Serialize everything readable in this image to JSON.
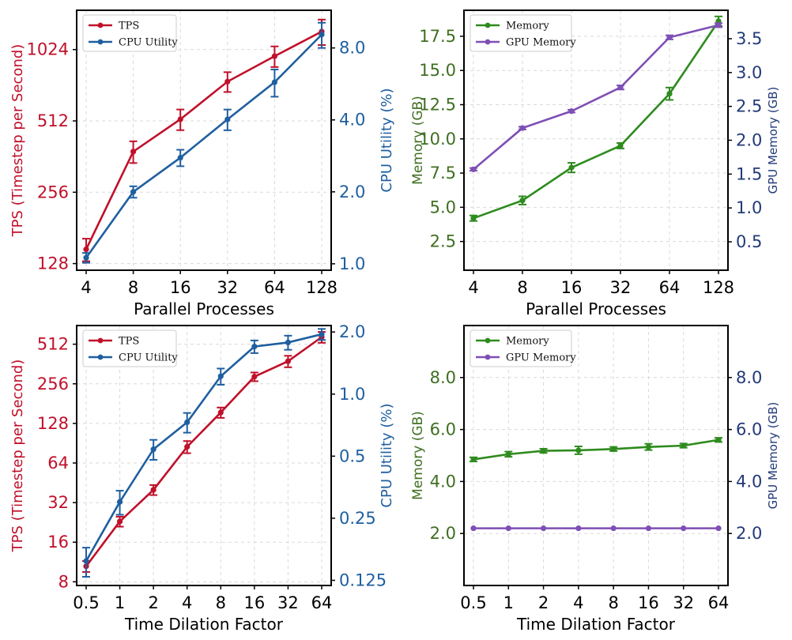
{
  "colors": {
    "tps": "#c0102a",
    "cpu": "#1f5fa0",
    "memory": "#2e8b1e",
    "gpu": "#7e4fb5",
    "memory_axis": "#3f6f22",
    "gpu_axis": "#233a78"
  },
  "chart_data": [
    {
      "id": "tl",
      "type": "line",
      "xlabel": "Parallel Processes",
      "categories": [
        "4",
        "8",
        "16",
        "32",
        "64",
        "128"
      ],
      "left_axis": {
        "label": "TPS (Timestep per Second)",
        "scale": "log2",
        "range": [
          120,
          1500
        ],
        "ticks": [
          128,
          256,
          512,
          1024
        ],
        "tick_labels": [
          "128",
          "256",
          "512",
          "1024"
        ],
        "color_key": "tps"
      },
      "right_axis": {
        "label": "CPU Utility (%)",
        "scale": "log2",
        "range": [
          0.94,
          11.5
        ],
        "ticks": [
          1,
          2,
          4,
          8
        ],
        "tick_labels": [
          "1.0",
          "2.0",
          "4.0",
          "8.0"
        ],
        "color_key": "cpu"
      },
      "legend_position": "top-left",
      "series": [
        {
          "name": "TPS",
          "axis": "left",
          "color_key": "tps",
          "values": [
            147,
            380,
            520,
            750,
            960,
            1220
          ],
          "errors": [
            16,
            40,
            52,
            72,
            96,
            150
          ]
        },
        {
          "name": "CPU Utility",
          "axis": "right",
          "color_key": "cpu",
          "values": [
            1.06,
            2.0,
            2.78,
            4.02,
            5.75,
            9.1
          ],
          "errors": [
            0.05,
            0.11,
            0.22,
            0.4,
            0.75,
            1.1
          ]
        }
      ]
    },
    {
      "id": "tr",
      "type": "line",
      "xlabel": "Parallel Processes",
      "categories": [
        "4",
        "8",
        "16",
        "32",
        "64",
        "128"
      ],
      "left_axis": {
        "label": "Memory (GB)",
        "scale": "linear",
        "range": [
          0.4,
          19.4
        ],
        "ticks": [
          2.5,
          5,
          7.5,
          10,
          12.5,
          15,
          17.5
        ],
        "tick_labels": [
          "2.5",
          "5.0",
          "7.5",
          "10.0",
          "12.5",
          "15.0",
          "17.5"
        ],
        "color_key": "memory_axis"
      },
      "right_axis": {
        "label": "GPU Memory (GB)",
        "scale": "linear",
        "range": [
          0.08,
          3.92
        ],
        "ticks": [
          0.5,
          1,
          1.5,
          2,
          2.5,
          3,
          3.5
        ],
        "tick_labels": [
          "0.5",
          "1.0",
          "1.5",
          "2.0",
          "2.5",
          "3.0",
          "3.5"
        ],
        "color_key": "gpu_axis"
      },
      "legend_position": "top-left",
      "series": [
        {
          "name": "Memory",
          "axis": "left",
          "color_key": "memory",
          "values": [
            4.2,
            5.5,
            7.9,
            9.5,
            13.3,
            18.6
          ],
          "errors": [
            0.2,
            0.3,
            0.35,
            0.2,
            0.45,
            0.35
          ]
        },
        {
          "name": "GPU Memory",
          "axis": "right",
          "color_key": "gpu",
          "values": [
            1.57,
            2.18,
            2.43,
            2.78,
            3.52,
            3.7
          ],
          "errors": [
            0.02,
            0.02,
            0.02,
            0.03,
            0.03,
            0.03
          ]
        }
      ]
    },
    {
      "id": "bl",
      "type": "line",
      "xlabel": "Time Dilation Factor",
      "categories": [
        "0.5",
        "1",
        "2",
        "4",
        "8",
        "16",
        "32",
        "64"
      ],
      "left_axis": {
        "label": "TPS (Timestep per Second)",
        "scale": "log2",
        "range": [
          7.5,
          710
        ],
        "ticks": [
          8,
          16,
          32,
          64,
          128,
          256,
          512
        ],
        "tick_labels": [
          "8",
          "16",
          "32",
          "64",
          "128",
          "256",
          "512"
        ],
        "color_key": "tps"
      },
      "right_axis": {
        "label": "CPU Utility (%)",
        "scale": "log2",
        "range": [
          0.118,
          2.15
        ],
        "ticks": [
          0.125,
          0.25,
          0.5,
          1,
          2
        ],
        "tick_labels": [
          "0.125",
          "0.25",
          "0.5",
          "1.0",
          "2.0"
        ],
        "color_key": "cpu"
      },
      "legend_position": "top-left",
      "series": [
        {
          "name": "TPS",
          "axis": "left",
          "color_key": "tps",
          "values": [
            10.5,
            23,
            40,
            85,
            155,
            290,
            380,
            580
          ],
          "errors": [
            1,
            2,
            3.5,
            9,
            14,
            22,
            38,
            55
          ]
        },
        {
          "name": "CPU Utility",
          "axis": "right",
          "color_key": "cpu",
          "values": [
            0.155,
            0.3,
            0.54,
            0.73,
            1.22,
            1.7,
            1.78,
            1.95
          ],
          "errors": [
            0.025,
            0.04,
            0.06,
            0.08,
            0.11,
            0.12,
            0.14,
            0.12
          ]
        }
      ]
    },
    {
      "id": "br",
      "type": "line",
      "xlabel": "Time Dilation Factor",
      "categories": [
        "0.5",
        "1",
        "2",
        "4",
        "8",
        "16",
        "32",
        "64"
      ],
      "left_axis": {
        "label": "Memory (GB)",
        "scale": "linear",
        "range": [
          0,
          10
        ],
        "ticks": [
          2,
          4,
          6,
          8
        ],
        "tick_labels": [
          "2.0",
          "4.0",
          "6.0",
          "8.0"
        ],
        "color_key": "memory_axis"
      },
      "right_axis": {
        "label": "GPU Memory (GB)",
        "scale": "linear",
        "range": [
          0,
          10
        ],
        "ticks": [
          2,
          4,
          6,
          8
        ],
        "tick_labels": [
          "2.0",
          "4.0",
          "6.0",
          "8.0"
        ],
        "color_key": "gpu_axis"
      },
      "legend_position": "top-left",
      "series": [
        {
          "name": "Memory",
          "axis": "left",
          "color_key": "memory",
          "values": [
            4.85,
            5.05,
            5.18,
            5.2,
            5.25,
            5.33,
            5.38,
            5.6
          ],
          "errors": [
            0.08,
            0.1,
            0.08,
            0.15,
            0.08,
            0.12,
            0.08,
            0.08
          ]
        },
        {
          "name": "GPU Memory",
          "axis": "right",
          "color_key": "gpu",
          "values": [
            2.2,
            2.2,
            2.2,
            2.2,
            2.2,
            2.2,
            2.2,
            2.2
          ],
          "errors": [
            0,
            0,
            0,
            0,
            0,
            0,
            0,
            0
          ]
        }
      ]
    }
  ]
}
